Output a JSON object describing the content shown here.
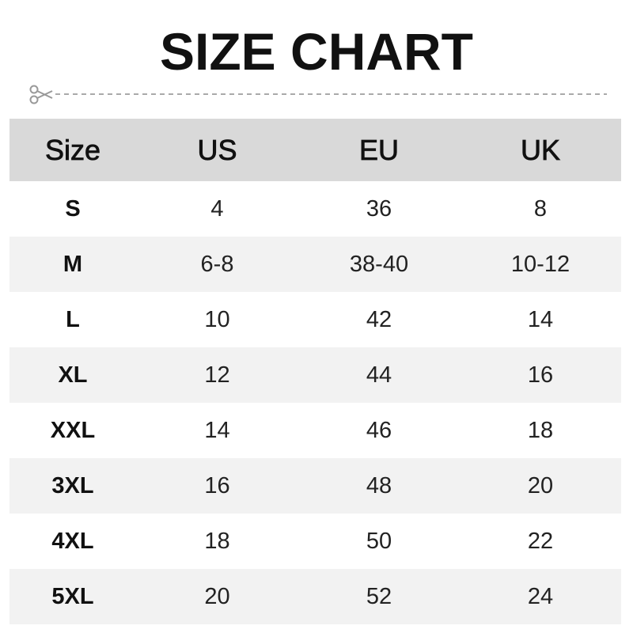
{
  "title": "SIZE CHART",
  "icons": {
    "cut": "scissors-icon"
  },
  "colors": {
    "header_bg": "#d9d9d9",
    "stripe_bg": "#f2f2f2",
    "dash": "#aaaaaa"
  },
  "table": {
    "headers": [
      "Size",
      "US",
      "EU",
      "UK"
    ],
    "rows": [
      [
        "S",
        "4",
        "36",
        "8"
      ],
      [
        "M",
        "6-8",
        "38-40",
        "10-12"
      ],
      [
        "L",
        "10",
        "42",
        "14"
      ],
      [
        "XL",
        "12",
        "44",
        "16"
      ],
      [
        "XXL",
        "14",
        "46",
        "18"
      ],
      [
        "3XL",
        "16",
        "48",
        "20"
      ],
      [
        "4XL",
        "18",
        "50",
        "22"
      ],
      [
        "5XL",
        "20",
        "52",
        "24"
      ]
    ]
  }
}
